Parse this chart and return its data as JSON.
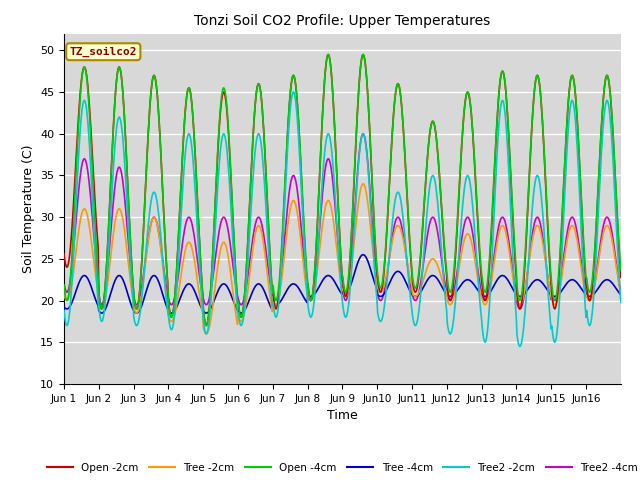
{
  "title": "Tonzi Soil CO2 Profile: Upper Temperatures",
  "xlabel": "Time",
  "ylabel": "Soil Temperature (C)",
  "ylim": [
    10,
    52
  ],
  "yticks": [
    10,
    15,
    20,
    25,
    30,
    35,
    40,
    45,
    50
  ],
  "background_color": "#d8d8d8",
  "legend_label": "TZ_soilco2",
  "series": {
    "Open -2cm": {
      "color": "#cc0000",
      "lw": 1.2
    },
    "Tree -2cm": {
      "color": "#ff9900",
      "lw": 1.2
    },
    "Open -4cm": {
      "color": "#00cc00",
      "lw": 1.2
    },
    "Tree -4cm": {
      "color": "#0000cc",
      "lw": 1.2
    },
    "Tree2 -2cm": {
      "color": "#00cccc",
      "lw": 1.2
    },
    "Tree2 -4cm": {
      "color": "#cc00cc",
      "lw": 1.2
    }
  },
  "n_days": 16,
  "points_per_day": 48,
  "open2_peaks": [
    48,
    48,
    47,
    45.5,
    45,
    46,
    47,
    49.5,
    49.5,
    46,
    41.5,
    45,
    47.5,
    47,
    47,
    47
  ],
  "open2_troughs": [
    24,
    19,
    19,
    18,
    17,
    18,
    19,
    20,
    20.5,
    21,
    21,
    20,
    20,
    19,
    19,
    20
  ],
  "tree2_peaks": [
    31,
    31,
    30,
    27,
    27,
    29,
    32,
    32,
    34,
    29,
    25,
    28,
    29,
    29,
    29,
    29
  ],
  "tree2_troughs": [
    20,
    19,
    18.5,
    17.5,
    16,
    17.5,
    19.5,
    20,
    20.5,
    21,
    20.5,
    19.5,
    19.5,
    19.5,
    19.5,
    20
  ],
  "open4_peaks": [
    48,
    48,
    47,
    45.5,
    45.5,
    46,
    47,
    49.5,
    49.5,
    46,
    41.5,
    45,
    47.5,
    47,
    47,
    47
  ],
  "open4_troughs": [
    20,
    19,
    19,
    18,
    17,
    18,
    20,
    20,
    21,
    21.5,
    21.5,
    21,
    21,
    20,
    20,
    21
  ],
  "tree4_peaks": [
    23,
    23,
    23,
    22,
    22,
    22,
    22,
    23,
    25.5,
    23.5,
    23,
    22.5,
    23,
    22.5,
    22.5,
    22.5
  ],
  "tree4_troughs": [
    19,
    18.5,
    18.5,
    18.5,
    18.5,
    18.5,
    19.5,
    20.5,
    21,
    20.5,
    20.5,
    20.5,
    20.5,
    20.5,
    20.5,
    20.5
  ],
  "tree22_peaks": [
    44,
    42,
    33,
    40,
    40,
    40,
    45,
    40,
    40,
    33,
    35,
    35,
    44,
    35,
    44,
    44
  ],
  "tree22_troughs": [
    17,
    17.5,
    17,
    16.5,
    16,
    17,
    18,
    18,
    18,
    17.5,
    17,
    16,
    15,
    14.5,
    15,
    17
  ],
  "tree24_peaks": [
    37,
    36,
    30,
    30,
    30,
    30,
    35,
    37,
    40,
    30,
    30,
    30,
    30,
    30,
    30,
    30
  ],
  "tree24_troughs": [
    21,
    19.5,
    19.5,
    19.5,
    19.5,
    19.5,
    20,
    20,
    20,
    20,
    20,
    20,
    20,
    19,
    20,
    20
  ]
}
